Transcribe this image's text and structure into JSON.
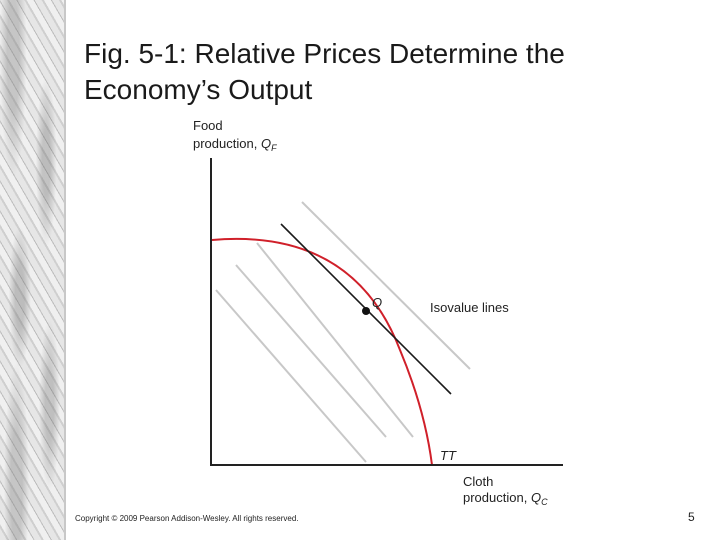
{
  "slide": {
    "title_line1": "Fig. 5-1: Relative Prices Determine the",
    "title_line2": "Economy’s Output",
    "copyright": "Copyright © 2009 Pearson Addison-Wesley. All rights reserved.",
    "page_number": "5"
  },
  "diagram": {
    "y_axis_label_line1": "Food",
    "y_axis_label_line2": "production, ",
    "y_axis_var": "Q",
    "y_axis_sub": "F",
    "x_axis_label_line1": "Cloth",
    "x_axis_label_line2": "production, ",
    "x_axis_var": "Q",
    "x_axis_sub": "C",
    "point_label": "Q",
    "isovalue_label": "Isovalue lines",
    "curve_label": "TT",
    "colors": {
      "curve": "#d0202a",
      "isovalue": "#c8c8c8",
      "tangent": "#1a1a1a",
      "axes": "#222222"
    }
  }
}
